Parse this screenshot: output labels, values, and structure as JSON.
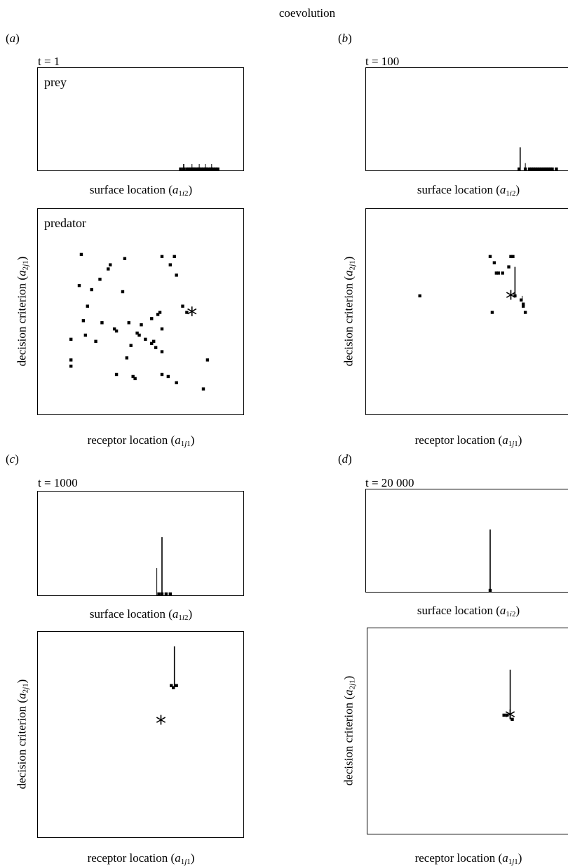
{
  "figure_title": "coevolution",
  "common": {
    "surface_xlabel": "surface location",
    "receptor_xlabel": "receptor location",
    "decision_ylabel": "decision criterion",
    "prey_label": "prey",
    "predator_label": "predator",
    "optimum_marker": "*"
  },
  "panels": [
    {
      "id": "a",
      "letter": "a",
      "time": "t = 1"
    },
    {
      "id": "b",
      "letter": "b",
      "time": "t = 100"
    },
    {
      "id": "c",
      "letter": "c",
      "time": "t = 1000"
    },
    {
      "id": "d",
      "letter": "d",
      "time": "t = 20 000"
    }
  ],
  "chart_data": [
    {
      "panel": "a",
      "plot": "prey",
      "type": "scatter",
      "x": [
        0.69,
        0.705,
        0.72,
        0.73,
        0.74,
        0.75,
        0.755,
        0.765,
        0.775,
        0.78,
        0.79,
        0.8,
        0.81,
        0.815,
        0.825,
        0.835,
        0.84,
        0.85,
        0.86,
        0.87
      ],
      "y": [
        0,
        0,
        0,
        0,
        0,
        0,
        0,
        0,
        0,
        0,
        0,
        0,
        0,
        0,
        0,
        0,
        0,
        0,
        0,
        0
      ],
      "lines": [
        [
          0.705,
          0.05
        ],
        [
          0.745,
          0.05
        ],
        [
          0.78,
          0.05
        ],
        [
          0.81,
          0.05
        ],
        [
          0.84,
          0.05
        ]
      ]
    },
    {
      "panel": "a",
      "plot": "predator",
      "type": "scatter",
      "x": [
        0.21,
        0.35,
        0.34,
        0.42,
        0.6,
        0.66,
        0.67,
        0.64,
        0.3,
        0.26,
        0.41,
        0.24,
        0.22,
        0.7,
        0.72,
        0.31,
        0.44,
        0.5,
        0.55,
        0.58,
        0.59,
        0.6,
        0.37,
        0.38,
        0.48,
        0.49,
        0.52,
        0.56,
        0.55,
        0.57,
        0.23,
        0.45,
        0.6,
        0.43,
        0.16,
        0.16,
        0.38,
        0.46,
        0.47,
        0.6,
        0.63,
        0.67,
        0.82,
        0.8,
        0.28,
        0.2,
        0.16
      ],
      "y": [
        0.78,
        0.73,
        0.71,
        0.76,
        0.77,
        0.77,
        0.68,
        0.73,
        0.66,
        0.61,
        0.6,
        0.53,
        0.46,
        0.53,
        0.5,
        0.45,
        0.45,
        0.44,
        0.47,
        0.49,
        0.5,
        0.42,
        0.42,
        0.41,
        0.4,
        0.39,
        0.37,
        0.36,
        0.35,
        0.33,
        0.39,
        0.34,
        0.31,
        0.28,
        0.27,
        0.24,
        0.2,
        0.19,
        0.18,
        0.2,
        0.19,
        0.16,
        0.27,
        0.13,
        0.36,
        0.63,
        0.37
      ],
      "optimum": [
        0.745,
        0.5
      ]
    },
    {
      "panel": "b",
      "plot": "prey",
      "type": "scatter",
      "x": [
        0.74,
        0.77,
        0.79,
        0.8,
        0.81,
        0.82,
        0.83,
        0.84,
        0.85,
        0.86,
        0.87,
        0.88,
        0.89,
        0.9,
        0.92
      ],
      "y": [
        0,
        0,
        0,
        0,
        0,
        0,
        0,
        0,
        0,
        0,
        0,
        0,
        0,
        0,
        0
      ],
      "lines": [
        [
          0.745,
          0.22
        ],
        [
          0.77,
          0.06
        ]
      ]
    },
    {
      "panel": "b",
      "plot": "predator",
      "type": "scatter",
      "x": [
        0.26,
        0.6,
        0.62,
        0.63,
        0.7,
        0.71,
        0.69,
        0.66,
        0.64,
        0.61,
        0.75,
        0.76,
        0.77,
        0.76,
        0.72
      ],
      "y": [
        0.58,
        0.77,
        0.74,
        0.69,
        0.77,
        0.77,
        0.72,
        0.69,
        0.69,
        0.5,
        0.56,
        0.53,
        0.5,
        0.54,
        0.58
      ],
      "lines": [
        [
          0.72,
          0.72
        ],
        [
          0.755,
          0.58
        ]
      ],
      "optimum": [
        0.7,
        0.58
      ]
    },
    {
      "panel": "c",
      "plot": "prey",
      "type": "scatter",
      "x": [
        0.585,
        0.6,
        0.62,
        0.64
      ],
      "y": [
        0,
        0,
        0,
        0
      ],
      "lines": [
        [
          0.6,
          0.57
        ],
        [
          0.575,
          0.26
        ]
      ]
    },
    {
      "panel": "c",
      "plot": "predator",
      "type": "scatter",
      "x": [
        0.645,
        0.655,
        0.67
      ],
      "y": [
        0.74,
        0.73,
        0.74
      ],
      "lines": [
        [
          0.66,
          0.93
        ]
      ],
      "optimum": [
        0.595,
        0.57
      ]
    },
    {
      "panel": "d",
      "plot": "prey",
      "type": "scatter",
      "x": [
        0.6
      ],
      "y": [
        0
      ],
      "lines": [
        [
          0.6,
          0.62
        ]
      ]
    },
    {
      "panel": "d",
      "plot": "predator",
      "type": "scatter",
      "x": [
        0.66,
        0.675,
        0.7
      ],
      "y": [
        0.58,
        0.58,
        0.56
      ],
      "lines": [
        [
          0.69,
          0.8
        ]
      ],
      "optimum": [
        0.69,
        0.58
      ]
    }
  ]
}
